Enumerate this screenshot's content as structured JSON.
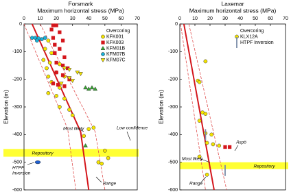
{
  "chart_data": [
    {
      "type": "scatter",
      "title": "Forsmark",
      "subtitle": "Maximum horizontal stress (MPa)",
      "ylabel": "Elevation (m)",
      "xlim": [
        0,
        70
      ],
      "xticks": [
        0,
        10,
        20,
        30,
        40,
        50,
        60,
        70
      ],
      "ylim": [
        -600,
        0
      ],
      "yticks": [
        0,
        -100,
        -200,
        -300,
        -400,
        -500,
        -600
      ],
      "legend_title": "Overcoring",
      "legend": "upper right",
      "band": {
        "label": "Repository",
        "range": [
          -452,
          -480
        ],
        "color": "#ffff33"
      },
      "series": [
        {
          "name": "KFK001",
          "color": "#f5e400",
          "marker": "circle",
          "x": [
            15,
            13,
            17,
            12,
            16,
            22,
            14,
            20,
            15,
            25,
            17,
            22,
            15,
            20,
            25,
            22,
            28,
            40,
            43,
            30,
            37,
            50,
            52,
            46,
            48
          ],
          "y": [
            -60,
            -90,
            -105,
            -130,
            -140,
            -145,
            -160,
            -175,
            -190,
            -190,
            -210,
            -230,
            -250,
            -260,
            -270,
            -300,
            -310,
            -380,
            -375,
            -330,
            -405,
            -458,
            -485,
            -500,
            -505
          ]
        },
        {
          "name": "KFK003",
          "color": "#d4161c",
          "marker": "square",
          "x": [
            18,
            20,
            17,
            22,
            18,
            24,
            19,
            22,
            19,
            25,
            20,
            24,
            27,
            20,
            24,
            28,
            18,
            21,
            25
          ],
          "y": [
            -5,
            -5,
            -20,
            -30,
            -50,
            -60,
            -75,
            -90,
            -105,
            -120,
            -140,
            -150,
            -160,
            -175,
            -185,
            -200,
            -215,
            -220,
            -225
          ]
        },
        {
          "name": "KFM01B",
          "color": "#3aa935",
          "marker": "triangle-up",
          "x": [
            38,
            40,
            42,
            44,
            38
          ],
          "y": [
            -230,
            -235,
            -230,
            -235,
            -440
          ]
        },
        {
          "name": "KFM07B",
          "color": "#1ab0d8",
          "marker": "circle",
          "x": [
            5,
            7,
            9,
            11,
            13,
            8
          ],
          "y": [
            -50,
            -50,
            -52,
            -55,
            -50,
            -60
          ]
        },
        {
          "name": "KFM07C",
          "color": "#f5e400",
          "marker": "triangle-down",
          "x": [
            28,
            33,
            35,
            28,
            30,
            23,
            25
          ],
          "y": [
            -165,
            -175,
            -180,
            -195,
            -205,
            -215,
            -160
          ]
        },
        {
          "color": "#1f5fd0",
          "marker": "ellipse",
          "x": [
            8.5
          ],
          "y": [
            -500
          ]
        }
      ],
      "lines": [
        {
          "color": "#d4161c",
          "style": "solid",
          "x": [
            5,
            35,
            40
          ],
          "y": [
            0,
            -390,
            -600
          ]
        },
        {
          "color": "#e05050",
          "style": "dashed",
          "x": [
            0,
            27,
            32
          ],
          "y": [
            0,
            -380,
            -600
          ]
        },
        {
          "color": "#e05050",
          "style": "dashed",
          "x": [
            10,
            44,
            50
          ],
          "y": [
            0,
            -390,
            -600
          ]
        }
      ],
      "annotations": [
        "Most likely",
        "Low confidence",
        "HTPF",
        "Inversion",
        "Range"
      ]
    },
    {
      "type": "scatter",
      "title": "Laxemar",
      "subtitle": "Maximum horizontal stress (MPa)",
      "ylabel": "Elevation (m)",
      "xlim": [
        0,
        70
      ],
      "xticks": [
        0,
        10,
        20,
        30,
        40,
        50,
        60,
        70
      ],
      "ylim": [
        -600,
        0
      ],
      "yticks": [
        0,
        -100,
        -200,
        -300,
        -400,
        -500,
        -600
      ],
      "legend_title": "Overcoring",
      "legend": "upper right",
      "band": {
        "label": "Repository",
        "range": [
          -500,
          -525
        ],
        "color": "#ffff33"
      },
      "series": [
        {
          "name": "KLX12A",
          "color": "#f5e400",
          "marker": "circle",
          "x": [
            12,
            13,
            17,
            15,
            17,
            13,
            17,
            21,
            18,
            22,
            26,
            13,
            18
          ],
          "y": [
            -205,
            -210,
            -135,
            -320,
            -325,
            -350,
            -395,
            -400,
            -430,
            -435,
            -440,
            -480,
            -545
          ]
        },
        {
          "name": "HTPF Inversion",
          "color": "#7a8ca8",
          "marker": "vbar",
          "x": [
            17,
            30
          ],
          "y": [
            -400,
            -530
          ]
        },
        {
          "color": "#d4161c",
          "marker": "square",
          "x": [
            30,
            33
          ],
          "y": [
            -445,
            -445
          ]
        }
      ],
      "lines": [
        {
          "color": "#d4161c",
          "style": "solid",
          "x": [
            2.7,
            22.7
          ],
          "y": [
            0,
            -600
          ]
        },
        {
          "color": "#e05050",
          "style": "dashed",
          "x": [
            0.5,
            17
          ],
          "y": [
            0,
            -600
          ]
        },
        {
          "color": "#e05050",
          "style": "dashed",
          "x": [
            6,
            31
          ],
          "y": [
            0,
            -600
          ]
        }
      ],
      "annotations": [
        "Most likely",
        "Range",
        "Äspö"
      ]
    }
  ]
}
